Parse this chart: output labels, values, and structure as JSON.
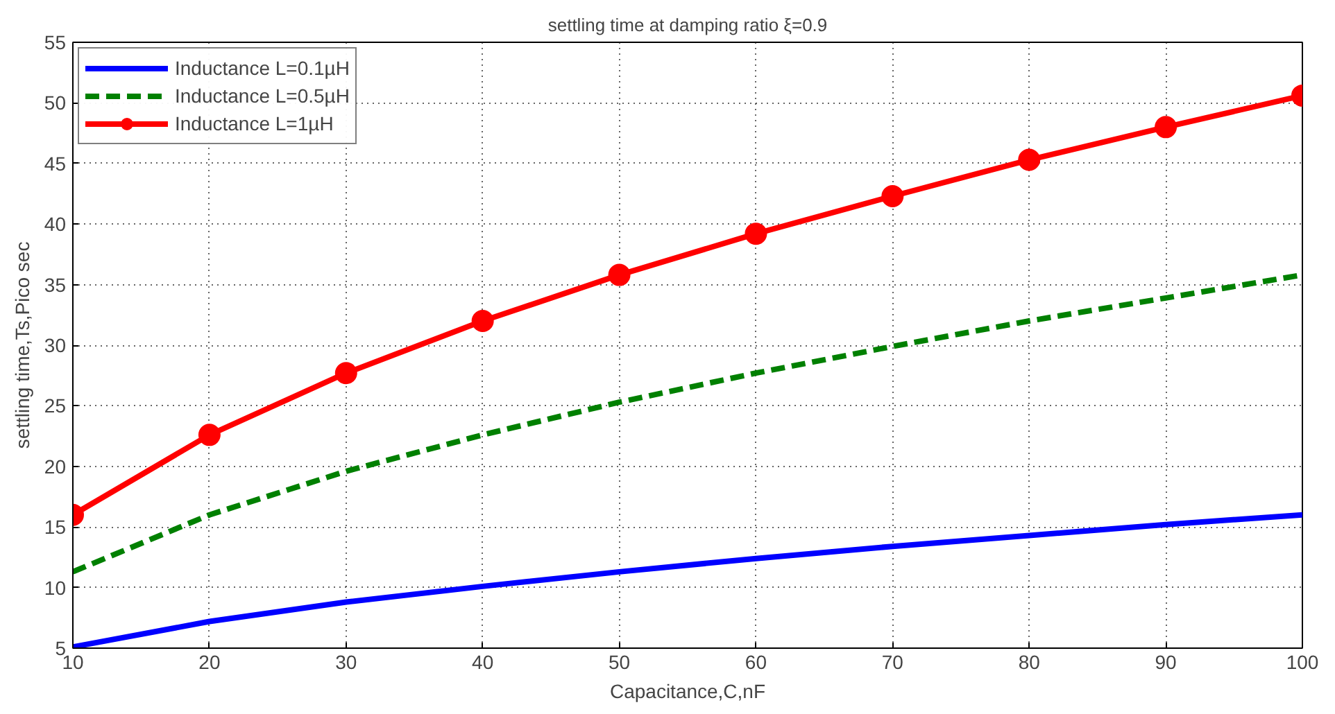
{
  "chart_data": {
    "type": "line",
    "title": "settling time at damping ratio ξ=0.9",
    "xlabel": "Capacitance,C,nF",
    "ylabel": "settling time,Ts,Pico sec",
    "x": [
      10,
      20,
      30,
      40,
      50,
      60,
      70,
      80,
      90,
      100
    ],
    "series": [
      {
        "name": "Inductance L=0.1µH",
        "color": "#0000ff",
        "line_style": "solid",
        "marker": "none",
        "values": [
          5.1,
          7.2,
          8.8,
          10.1,
          11.3,
          12.4,
          13.4,
          14.3,
          15.2,
          16.0
        ]
      },
      {
        "name": "Inductance L=0.5µH",
        "color": "#008000",
        "line_style": "dashed",
        "marker": "none",
        "values": [
          11.3,
          16.0,
          19.6,
          22.6,
          25.3,
          27.7,
          29.9,
          32.0,
          33.9,
          35.8
        ]
      },
      {
        "name": "Inductance L=1µH",
        "color": "#ff0000",
        "line_style": "solid",
        "marker": "circle",
        "values": [
          16.0,
          22.6,
          27.7,
          32.0,
          35.8,
          39.2,
          42.3,
          45.3,
          48.0,
          50.6
        ]
      }
    ],
    "xlim": [
      10,
      100
    ],
    "ylim": [
      5,
      55
    ],
    "xticks": [
      10,
      20,
      30,
      40,
      50,
      60,
      70,
      80,
      90,
      100
    ],
    "yticks": [
      5,
      10,
      15,
      20,
      25,
      30,
      35,
      40,
      45,
      50,
      55
    ],
    "grid": true,
    "legend": "top left"
  }
}
